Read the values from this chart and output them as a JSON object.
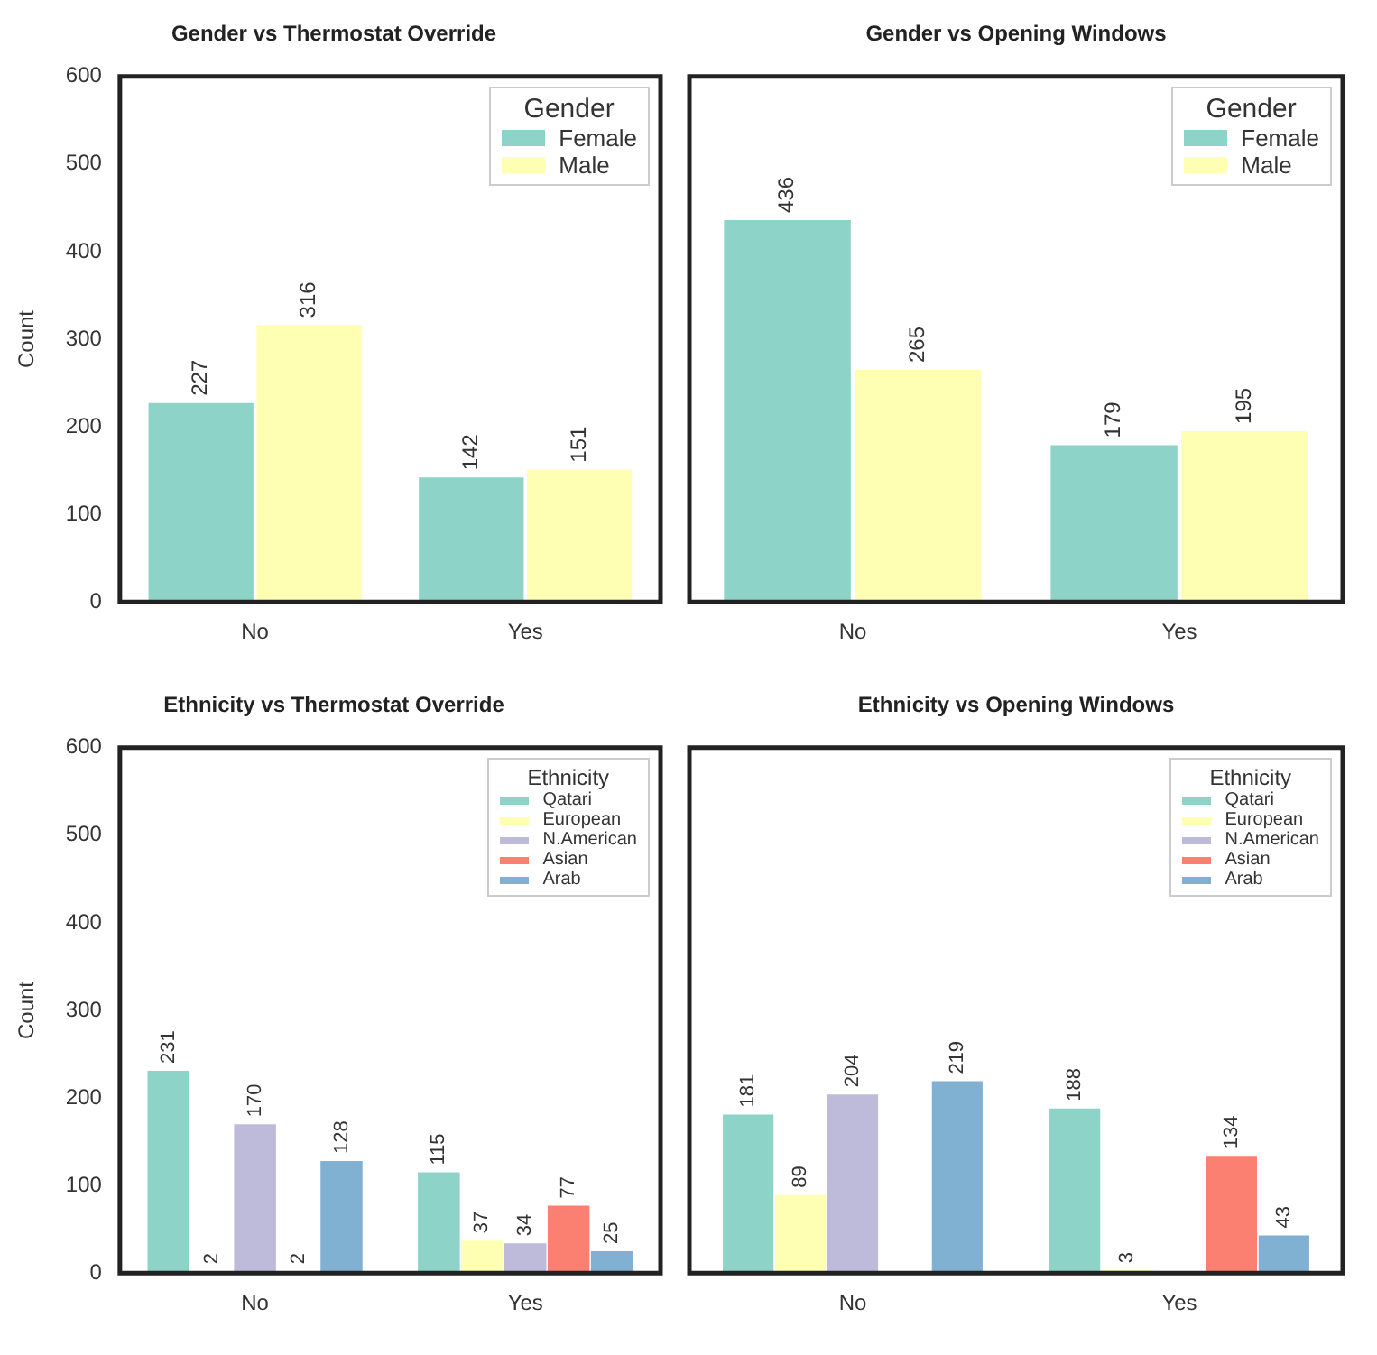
{
  "chart_data": [
    {
      "type": "bar",
      "title": "Gender vs Thermostat Override",
      "ylabel": "Count",
      "legend_title": "Gender",
      "legend": "top right",
      "categories": [
        "No",
        "Yes"
      ],
      "ylim": [
        0,
        600
      ],
      "yticks": [
        0,
        100,
        200,
        300,
        400,
        500,
        600
      ],
      "data_labels": true,
      "series": [
        {
          "name": "Female",
          "color": "#8dd3c7",
          "values": [
            227,
            142
          ]
        },
        {
          "name": "Male",
          "color": "#ffffb3",
          "values": [
            316,
            151
          ]
        }
      ]
    },
    {
      "type": "bar",
      "title": "Gender vs Opening Windows",
      "legend_title": "Gender",
      "legend": "top right",
      "categories": [
        "No",
        "Yes"
      ],
      "ylim": [
        0,
        600
      ],
      "yticks": [
        0,
        100,
        200,
        300,
        400,
        500,
        600
      ],
      "tick_labels": "x",
      "data_labels": true,
      "series": [
        {
          "name": "Female",
          "color": "#8dd3c7",
          "values": [
            436,
            179
          ]
        },
        {
          "name": "Male",
          "color": "#ffffb3",
          "values": [
            265,
            195
          ]
        }
      ]
    },
    {
      "type": "bar",
      "title": "Ethnicity vs Thermostat Override",
      "ylabel": "Count",
      "legend_title": "Ethnicity",
      "legend": "top right",
      "categories": [
        "No",
        "Yes"
      ],
      "ylim": [
        0,
        600
      ],
      "yticks": [
        0,
        100,
        200,
        300,
        400,
        500,
        600
      ],
      "data_labels": true,
      "series": [
        {
          "name": "Qatari",
          "color": "#8dd3c7",
          "values": [
            231,
            115
          ]
        },
        {
          "name": "European",
          "color": "#ffffb3",
          "values": [
            2,
            37
          ]
        },
        {
          "name": "N.American",
          "color": "#bebada",
          "values": [
            170,
            34
          ]
        },
        {
          "name": "Asian",
          "color": "#fb8072",
          "values": [
            2,
            77
          ]
        },
        {
          "name": "Arab",
          "color": "#80b1d3",
          "values": [
            128,
            25
          ]
        }
      ]
    },
    {
      "type": "bar",
      "title": "Ethnicity vs Opening Windows",
      "legend_title": "Ethnicity",
      "legend": "top right",
      "categories": [
        "No",
        "Yes"
      ],
      "ylim": [
        0,
        600
      ],
      "yticks": [
        0,
        100,
        200,
        300,
        400,
        500,
        600
      ],
      "tick_labels": "x",
      "data_labels": true,
      "series": [
        {
          "name": "Qatari",
          "color": "#8dd3c7",
          "values": [
            181,
            188
          ]
        },
        {
          "name": "European",
          "color": "#ffffb3",
          "values": [
            89,
            3
          ]
        },
        {
          "name": "N.American",
          "color": "#bebada",
          "values": [
            204,
            null
          ]
        },
        {
          "name": "Asian",
          "color": "#fb8072",
          "values": [
            null,
            134
          ]
        },
        {
          "name": "Arab",
          "color": "#80b1d3",
          "values": [
            219,
            43
          ]
        }
      ]
    }
  ]
}
